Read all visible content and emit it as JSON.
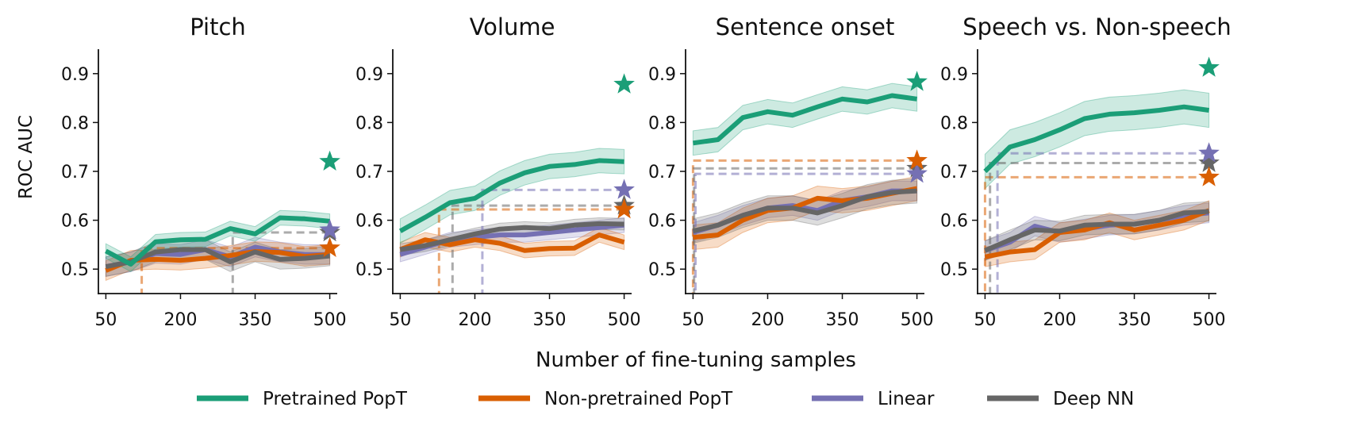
{
  "chart_data": {
    "type": "line",
    "xlabel": "Number of fine-tuning samples",
    "ylabel": "ROC AUC",
    "x": [
      50,
      100,
      150,
      200,
      250,
      300,
      350,
      400,
      450,
      500
    ],
    "xticks": [
      50,
      200,
      350,
      500
    ],
    "xtick_labels": [
      "50",
      "200",
      "350",
      "500"
    ],
    "xlim": [
      35,
      515
    ],
    "ylim": [
      0.45,
      0.95
    ],
    "yticks": [
      0.5,
      0.6,
      0.7,
      0.8,
      0.9
    ],
    "ytick_labels": [
      "0.5",
      "0.6",
      "0.7",
      "0.8",
      "0.9"
    ],
    "legend_order": [
      "pretrained",
      "nonpretrained",
      "linear",
      "deepnn"
    ],
    "series_styles": {
      "pretrained": {
        "name": "Pretrained PopT",
        "color": "#1b9e77"
      },
      "nonpretrained": {
        "name": "Non-pretrained PopT",
        "color": "#d95f02"
      },
      "linear": {
        "name": "Linear",
        "color": "#7570b3"
      },
      "deepnn": {
        "name": "Deep NN",
        "color": "#666666"
      }
    },
    "panels": [
      {
        "title": "Pitch",
        "series": {
          "pretrained": {
            "values": [
              0.537,
              0.51,
              0.556,
              0.56,
              0.561,
              0.583,
              0.572,
              0.605,
              0.603,
              0.598
            ],
            "band": 0.015
          },
          "nonpretrained": {
            "values": [
              0.497,
              0.518,
              0.52,
              0.518,
              0.522,
              0.528,
              0.536,
              0.534,
              0.526,
              0.53
            ],
            "band": 0.02
          },
          "linear": {
            "values": [
              0.505,
              0.515,
              0.532,
              0.53,
              0.54,
              0.525,
              0.545,
              0.535,
              0.53,
              0.53
            ],
            "band": 0.02
          },
          "deepnn": {
            "values": [
              0.505,
              0.515,
              0.535,
              0.54,
              0.54,
              0.515,
              0.535,
              0.52,
              0.522,
              0.527
            ],
            "band": 0.02
          }
        },
        "stars": {
          "pretrained": 0.72,
          "nonpretrained": 0.543,
          "linear": 0.58,
          "deepnn": 0.575
        },
        "crossings": {
          "nonpretrained": 122,
          "deepnn": 305
        }
      },
      {
        "title": "Volume",
        "series": {
          "pretrained": {
            "values": [
              0.578,
              0.606,
              0.636,
              0.645,
              0.676,
              0.697,
              0.71,
              0.714,
              0.722,
              0.72
            ],
            "band": 0.025
          },
          "nonpretrained": {
            "values": [
              0.54,
              0.56,
              0.55,
              0.56,
              0.553,
              0.538,
              0.542,
              0.543,
              0.57,
              0.555
            ],
            "band": 0.015
          },
          "linear": {
            "values": [
              0.53,
              0.545,
              0.56,
              0.565,
              0.57,
              0.57,
              0.575,
              0.58,
              0.585,
              0.59
            ],
            "band": 0.015
          },
          "deepnn": {
            "values": [
              0.54,
              0.548,
              0.56,
              0.572,
              0.582,
              0.585,
              0.583,
              0.59,
              0.593,
              0.592
            ],
            "band": 0.012
          }
        },
        "stars": {
          "pretrained": 0.878,
          "nonpretrained": 0.622,
          "linear": 0.662,
          "deepnn": 0.63
        },
        "crossings": {
          "nonpretrained": 128,
          "deepnn": 155,
          "linear": 215
        }
      },
      {
        "title": "Sentence onset",
        "series": {
          "pretrained": {
            "values": [
              0.758,
              0.765,
              0.81,
              0.822,
              0.815,
              0.832,
              0.848,
              0.842,
              0.855,
              0.848
            ],
            "band": 0.025
          },
          "nonpretrained": {
            "values": [
              0.565,
              0.57,
              0.6,
              0.62,
              0.625,
              0.645,
              0.64,
              0.645,
              0.655,
              0.665
            ],
            "band": 0.025
          },
          "linear": {
            "values": [
              0.575,
              0.59,
              0.61,
              0.625,
              0.63,
              0.62,
              0.64,
              0.648,
              0.66,
              0.66
            ],
            "band": 0.02
          },
          "deepnn": {
            "values": [
              0.578,
              0.59,
              0.61,
              0.625,
              0.625,
              0.615,
              0.63,
              0.648,
              0.657,
              0.66
            ],
            "band": 0.025
          }
        },
        "stars": {
          "pretrained": 0.883,
          "nonpretrained": 0.722,
          "linear": 0.695,
          "deepnn": 0.706
        },
        "crossings": {
          "nonpretrained": 50,
          "deepnn": 52,
          "linear": 55
        }
      },
      {
        "title": "Speech vs. Non-speech",
        "series": {
          "pretrained": {
            "values": [
              0.7,
              0.75,
              0.765,
              0.785,
              0.808,
              0.817,
              0.82,
              0.825,
              0.832,
              0.825
            ],
            "band": 0.035
          },
          "nonpretrained": {
            "values": [
              0.525,
              0.535,
              0.54,
              0.575,
              0.58,
              0.595,
              0.58,
              0.59,
              0.6,
              0.62
            ],
            "band": 0.02
          },
          "linear": {
            "values": [
              0.538,
              0.555,
              0.588,
              0.575,
              0.582,
              0.59,
              0.592,
              0.6,
              0.61,
              0.615
            ],
            "band": 0.02
          },
          "deepnn": {
            "values": [
              0.538,
              0.56,
              0.58,
              0.578,
              0.59,
              0.592,
              0.592,
              0.6,
              0.615,
              0.618
            ],
            "band": 0.02
          }
        },
        "stars": {
          "pretrained": 0.912,
          "nonpretrained": 0.688,
          "linear": 0.737,
          "deepnn": 0.717
        },
        "crossings": {
          "nonpretrained": 50,
          "deepnn": 60,
          "linear": 75
        }
      }
    ]
  }
}
